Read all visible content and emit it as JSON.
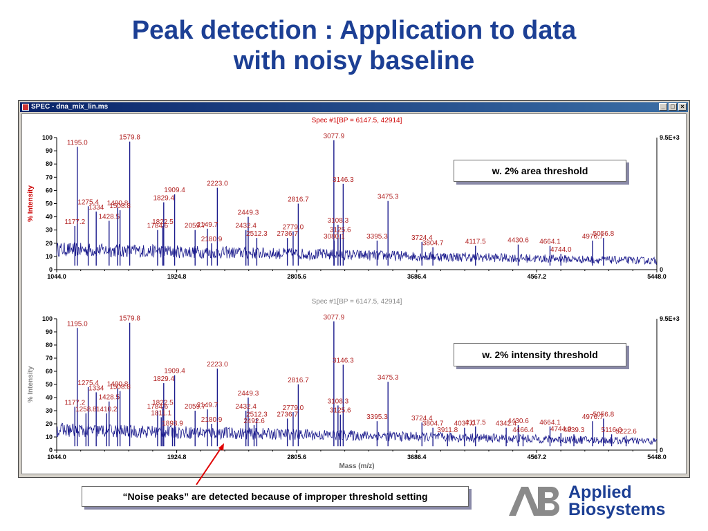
{
  "slide": {
    "title_line1": "Peak detection : Application to data",
    "title_line2": "with noisy baseline"
  },
  "window": {
    "title": "SPEC - dna_mix_lin.ms",
    "buttons": [
      "_",
      "□",
      "×"
    ]
  },
  "annotations": {
    "top_box": "w. 2% area threshold",
    "bottom_box": "w. 2% intensity threshold",
    "noise_note": "“Noise peaks” are detected because of improper threshold setting"
  },
  "logo": {
    "line1": "Applied",
    "line2": "Biosystems"
  },
  "colors": {
    "title": "#1c3f94",
    "trace": "#1a1a8c",
    "peak_label": "#b22222",
    "spec_title_active": "#cc0000",
    "spec_title_inactive": "#888888",
    "arrow": "#e00000"
  },
  "chart_data": [
    {
      "type": "line",
      "title": "Spec #1[BP = 6147.5, 42914]",
      "ylabel": "% Intensity",
      "xlabel": "",
      "xlim": [
        1044.0,
        5448.0
      ],
      "ylim": [
        0,
        100
      ],
      "x_ticks": [
        "1044.0",
        "1924.8",
        "2805.6",
        "3686.4",
        "4567.2",
        "5448.0"
      ],
      "y_ticks": [
        "0",
        "10",
        "20",
        "30",
        "40",
        "50",
        "60",
        "70",
        "80",
        "90",
        "100"
      ],
      "right_axis_top": "9.5E+3",
      "right_axis_bottom": "0",
      "peaks": [
        {
          "x": 1195.0,
          "y": 93,
          "label": "1195.0"
        },
        {
          "x": 1579.8,
          "y": 97,
          "label": "1579.8"
        },
        {
          "x": 1275.4,
          "y": 48,
          "label": "1275.4"
        },
        {
          "x": 1334,
          "y": 44,
          "label": "1334"
        },
        {
          "x": 1428.5,
          "y": 37,
          "label": "1428.5"
        },
        {
          "x": 1490.8,
          "y": 47,
          "label": "1490.8"
        },
        {
          "x": 1508.8,
          "y": 45,
          "label": "1508.8"
        },
        {
          "x": 1177.2,
          "y": 33,
          "label": "1177.2"
        },
        {
          "x": 1909.4,
          "y": 57,
          "label": "1909.4"
        },
        {
          "x": 1829.4,
          "y": 51,
          "label": "1829.4"
        },
        {
          "x": 1822.5,
          "y": 33,
          "label": "1822.5"
        },
        {
          "x": 1784.6,
          "y": 30,
          "label": "1784.6"
        },
        {
          "x": 2223.0,
          "y": 62,
          "label": "2223.0"
        },
        {
          "x": 2059.7,
          "y": 30,
          "label": "2059.7"
        },
        {
          "x": 2149.7,
          "y": 31,
          "label": "2149.7"
        },
        {
          "x": 2180.9,
          "y": 20,
          "label": "2180.9"
        },
        {
          "x": 2449.3,
          "y": 40,
          "label": "2449.3"
        },
        {
          "x": 2432.4,
          "y": 30,
          "label": "2432.4"
        },
        {
          "x": 2512.3,
          "y": 24,
          "label": "2512.3"
        },
        {
          "x": 2816.7,
          "y": 50,
          "label": "2816.7"
        },
        {
          "x": 2779.0,
          "y": 29,
          "label": "2779.0"
        },
        {
          "x": 2736.7,
          "y": 24,
          "label": "2736.7"
        },
        {
          "x": 3077.9,
          "y": 98,
          "label": "3077.9"
        },
        {
          "x": 3146.3,
          "y": 65,
          "label": "3146.3"
        },
        {
          "x": 3108.3,
          "y": 34,
          "label": "3108.3"
        },
        {
          "x": 3125.6,
          "y": 27,
          "label": "3125.6"
        },
        {
          "x": 3080.1,
          "y": 22,
          "label": "3080.1"
        },
        {
          "x": 3475.3,
          "y": 52,
          "label": "3475.3"
        },
        {
          "x": 3395.3,
          "y": 22,
          "label": "3395.3"
        },
        {
          "x": 3724.4,
          "y": 21,
          "label": "3724.4"
        },
        {
          "x": 3804.7,
          "y": 17,
          "label": "3804.7"
        },
        {
          "x": 4117.5,
          "y": 18,
          "label": "4117.5"
        },
        {
          "x": 4430.6,
          "y": 19,
          "label": "4430.6"
        },
        {
          "x": 4664.1,
          "y": 18,
          "label": "4664.1"
        },
        {
          "x": 4744.0,
          "y": 12,
          "label": "4744.0"
        },
        {
          "x": 4976.7,
          "y": 22,
          "label": "4976.7"
        },
        {
          "x": 5056.8,
          "y": 24,
          "label": "5056.8"
        }
      ]
    },
    {
      "type": "line",
      "title": "Spec #1[BP = 6147.5, 42914]",
      "ylabel": "% Intensity",
      "xlabel": "Mass (m/z)",
      "xlim": [
        1044.0,
        5448.0
      ],
      "ylim": [
        0,
        100
      ],
      "x_ticks": [
        "1044.0",
        "1924.8",
        "2805.6",
        "3686.4",
        "4567.2",
        "5448.0"
      ],
      "y_ticks": [
        "0",
        "10",
        "20",
        "30",
        "40",
        "50",
        "60",
        "70",
        "80",
        "90",
        "100"
      ],
      "right_axis_top": "9.5E+3",
      "right_axis_bottom": "0",
      "peaks": [
        {
          "x": 1195.0,
          "y": 93,
          "label": "1195.0"
        },
        {
          "x": 1579.8,
          "y": 97,
          "label": "1579.8"
        },
        {
          "x": 1275.4,
          "y": 48,
          "label": "1275.4"
        },
        {
          "x": 1334,
          "y": 44,
          "label": "1334"
        },
        {
          "x": 1428.5,
          "y": 37,
          "label": "1428.5"
        },
        {
          "x": 1490.8,
          "y": 47,
          "label": "1490.8"
        },
        {
          "x": 1508.8,
          "y": 45,
          "label": "1508.8"
        },
        {
          "x": 1177.2,
          "y": 33,
          "label": "1177.2"
        },
        {
          "x": 1258.8,
          "y": 28,
          "label": "1258.8"
        },
        {
          "x": 1410.2,
          "y": 28,
          "label": "1410.2"
        },
        {
          "x": 1909.4,
          "y": 57,
          "label": "1909.4"
        },
        {
          "x": 1829.4,
          "y": 51,
          "label": "1829.4"
        },
        {
          "x": 1822.5,
          "y": 33,
          "label": "1822.5"
        },
        {
          "x": 1784.6,
          "y": 30,
          "label": "1784.6"
        },
        {
          "x": 1811.1,
          "y": 25,
          "label": "1811.1"
        },
        {
          "x": 1893.9,
          "y": 17,
          "label": "1893.9"
        },
        {
          "x": 2223.0,
          "y": 62,
          "label": "2223.0"
        },
        {
          "x": 2059.7,
          "y": 30,
          "label": "2059.7"
        },
        {
          "x": 2149.7,
          "y": 31,
          "label": "2149.7"
        },
        {
          "x": 2180.9,
          "y": 20,
          "label": "2180.9"
        },
        {
          "x": 2449.3,
          "y": 40,
          "label": "2449.3"
        },
        {
          "x": 2432.4,
          "y": 30,
          "label": "2432.4"
        },
        {
          "x": 2512.3,
          "y": 24,
          "label": "2512.3"
        },
        {
          "x": 2492.6,
          "y": 19,
          "label": "2492.6"
        },
        {
          "x": 2816.7,
          "y": 50,
          "label": "2816.7"
        },
        {
          "x": 2779.0,
          "y": 29,
          "label": "2779.0"
        },
        {
          "x": 2736.7,
          "y": 24,
          "label": "2736.7"
        },
        {
          "x": 3077.9,
          "y": 98,
          "label": "3077.9"
        },
        {
          "x": 3146.3,
          "y": 65,
          "label": "3146.3"
        },
        {
          "x": 3108.3,
          "y": 34,
          "label": "3108.3"
        },
        {
          "x": 3125.6,
          "y": 27,
          "label": "3125.6"
        },
        {
          "x": 3475.3,
          "y": 52,
          "label": "3475.3"
        },
        {
          "x": 3395.3,
          "y": 22,
          "label": "3395.3"
        },
        {
          "x": 3724.4,
          "y": 21,
          "label": "3724.4"
        },
        {
          "x": 3804.7,
          "y": 17,
          "label": "3804.7"
        },
        {
          "x": 3911.8,
          "y": 12,
          "label": "3911.8"
        },
        {
          "x": 4037.0,
          "y": 17,
          "label": "4037.0"
        },
        {
          "x": 4117.5,
          "y": 18,
          "label": "4117.5"
        },
        {
          "x": 4342.4,
          "y": 17,
          "label": "4342.4"
        },
        {
          "x": 4430.6,
          "y": 19,
          "label": "4430.6"
        },
        {
          "x": 4466.4,
          "y": 12,
          "label": "4466.4"
        },
        {
          "x": 4664.1,
          "y": 18,
          "label": "4664.1"
        },
        {
          "x": 4744.0,
          "y": 13,
          "label": "4744.0"
        },
        {
          "x": 4839.3,
          "y": 12,
          "label": "4839.3"
        },
        {
          "x": 4976.7,
          "y": 22,
          "label": "4976.7"
        },
        {
          "x": 5056.8,
          "y": 24,
          "label": "5056.8"
        },
        {
          "x": 5116.0,
          "y": 12,
          "label": "5116.0"
        },
        {
          "x": 5222.6,
          "y": 11,
          "label": "5222.6"
        }
      ]
    }
  ]
}
